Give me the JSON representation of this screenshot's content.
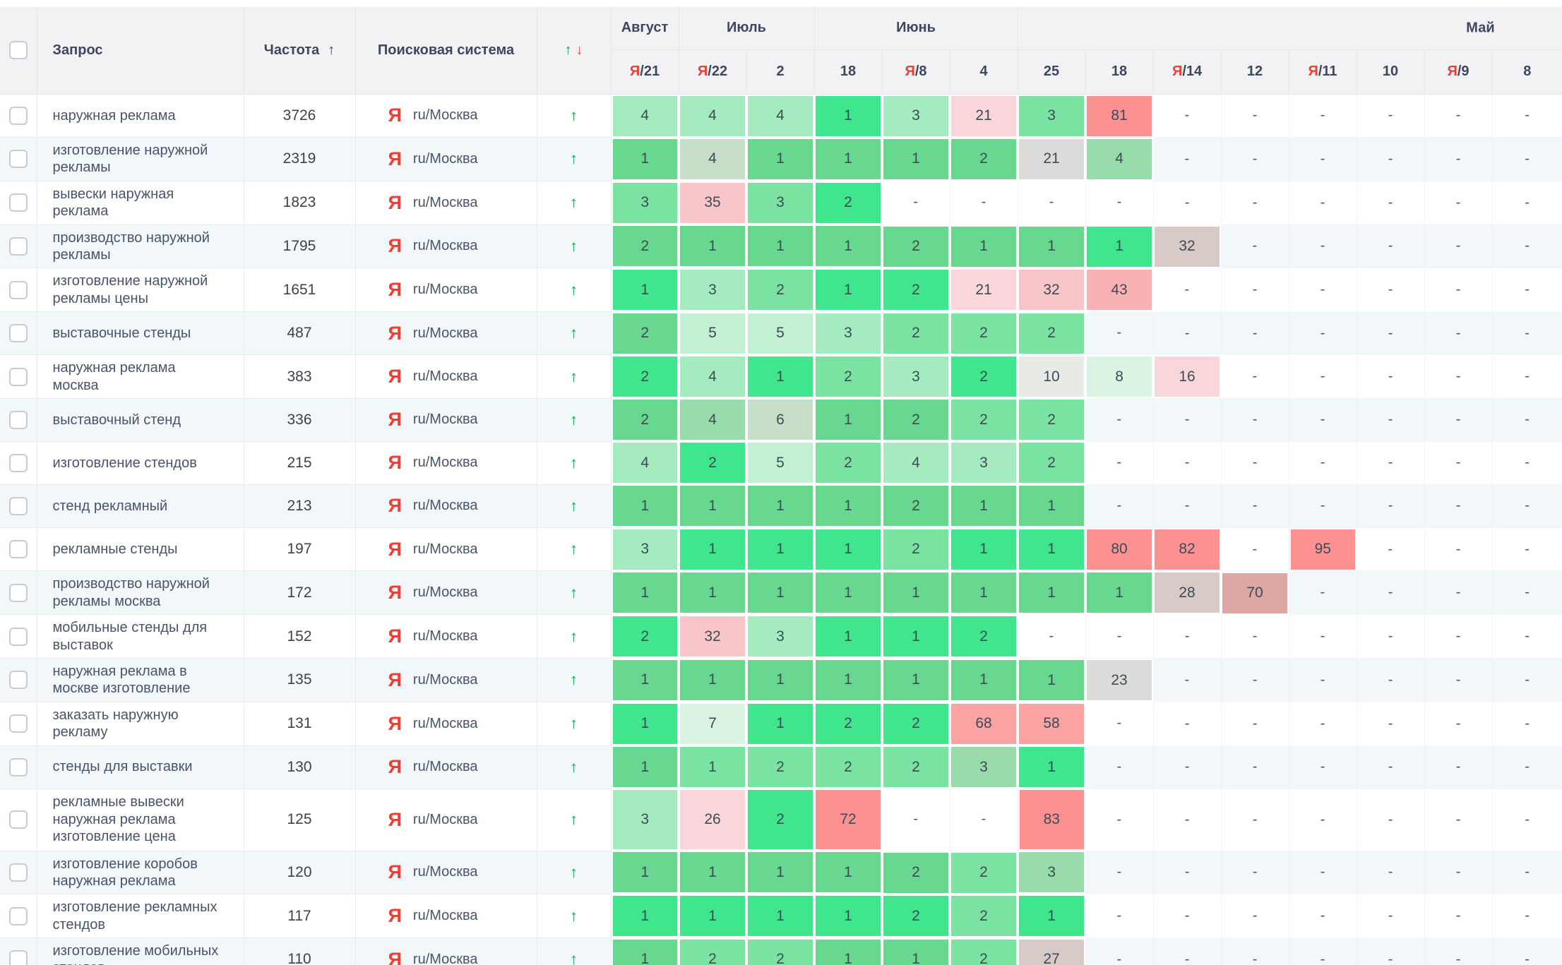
{
  "header": {
    "query": "Запрос",
    "frequency": "Частота",
    "frequency_sort_icon": "↑",
    "engine": "Поисковая система",
    "trend_up_icon": "↑",
    "trend_down_icon": "↓"
  },
  "months": [
    {
      "label": "Август",
      "span": 1
    },
    {
      "label": "Июль",
      "span": 2
    },
    {
      "label": "Июнь",
      "span": 3
    },
    {
      "label": "Май",
      "span": 8
    }
  ],
  "dates": [
    {
      "badge": "Я",
      "label": "/21"
    },
    {
      "badge": "Я",
      "label": "/22"
    },
    {
      "badge": "",
      "label": "2"
    },
    {
      "badge": "",
      "label": "18"
    },
    {
      "badge": "Я",
      "label": "/8"
    },
    {
      "badge": "",
      "label": "4"
    },
    {
      "badge": "",
      "label": "25"
    },
    {
      "badge": "",
      "label": "18"
    },
    {
      "badge": "Я",
      "label": "/14"
    },
    {
      "badge": "",
      "label": "12"
    },
    {
      "badge": "Я",
      "label": "/11"
    },
    {
      "badge": "",
      "label": "10"
    },
    {
      "badge": "Я",
      "label": "/9"
    },
    {
      "badge": "",
      "label": "8"
    }
  ],
  "palette": {
    "g1": "#40e68d",
    "g2": "#68d78f",
    "g3": "#7be3a1",
    "g4": "#a4ecc0",
    "g5": "#c3f1d3",
    "g6": "#c7dfc9",
    "g7": "#97dcaa",
    "g8": "#d9f4e0",
    "gy1": "#dbdcda",
    "gy2": "#e8eae6",
    "tp": "#d8cac6",
    "rs": "#dda7a3",
    "p1": "#f8d6d9",
    "p2": "#f8c5c8",
    "p3": "#f9b2b3",
    "p4": "#fba3a3",
    "r1": "#fb9191"
  },
  "colors": {
    "yandex_red": "#ee3f34",
    "trend_green": "#15a857",
    "trend_red": "#e84c4c",
    "header_bg": "#f2f2f4",
    "zebra_row": "#f2f7fa"
  },
  "engine_icon": "Я",
  "engine_region": "ru/Москва",
  "empty_mark": "-",
  "rows": [
    {
      "query": "наружная реклама",
      "frequency": "3726",
      "trend": "up",
      "positions": [
        {
          "v": "4",
          "c": "g4"
        },
        {
          "v": "4",
          "c": "g4"
        },
        {
          "v": "4",
          "c": "g4"
        },
        {
          "v": "1",
          "c": "g1"
        },
        {
          "v": "3",
          "c": "g4"
        },
        {
          "v": "21",
          "c": "p1"
        },
        {
          "v": "3",
          "c": "g3"
        },
        {
          "v": "81",
          "c": "r1"
        },
        {
          "v": "-"
        },
        {
          "v": "-"
        },
        {
          "v": "-"
        },
        {
          "v": "-"
        },
        {
          "v": "-"
        },
        {
          "v": "-"
        }
      ]
    },
    {
      "query": "изготовление наружной рекламы",
      "frequency": "2319",
      "trend": "up",
      "positions": [
        {
          "v": "1",
          "c": "g2"
        },
        {
          "v": "4",
          "c": "g6"
        },
        {
          "v": "1",
          "c": "g2"
        },
        {
          "v": "1",
          "c": "g2"
        },
        {
          "v": "1",
          "c": "g2"
        },
        {
          "v": "2",
          "c": "g2"
        },
        {
          "v": "21",
          "c": "gy1"
        },
        {
          "v": "4",
          "c": "g7"
        },
        {
          "v": "-"
        },
        {
          "v": "-"
        },
        {
          "v": "-"
        },
        {
          "v": "-"
        },
        {
          "v": "-"
        },
        {
          "v": "-"
        }
      ]
    },
    {
      "query": "вывески наружная реклама",
      "frequency": "1823",
      "trend": "up",
      "positions": [
        {
          "v": "3",
          "c": "g3"
        },
        {
          "v": "35",
          "c": "p2"
        },
        {
          "v": "3",
          "c": "g3"
        },
        {
          "v": "2",
          "c": "g1"
        },
        {
          "v": "-"
        },
        {
          "v": "-"
        },
        {
          "v": "-"
        },
        {
          "v": "-"
        },
        {
          "v": "-"
        },
        {
          "v": "-"
        },
        {
          "v": "-"
        },
        {
          "v": "-"
        },
        {
          "v": "-"
        },
        {
          "v": "-"
        }
      ]
    },
    {
      "query": "производство наружной рекламы",
      "frequency": "1795",
      "trend": "up",
      "positions": [
        {
          "v": "2",
          "c": "g2"
        },
        {
          "v": "1",
          "c": "g2"
        },
        {
          "v": "1",
          "c": "g2"
        },
        {
          "v": "1",
          "c": "g2"
        },
        {
          "v": "2",
          "c": "g2"
        },
        {
          "v": "1",
          "c": "g2"
        },
        {
          "v": "1",
          "c": "g2"
        },
        {
          "v": "1",
          "c": "g1"
        },
        {
          "v": "32",
          "c": "tp"
        },
        {
          "v": "-"
        },
        {
          "v": "-"
        },
        {
          "v": "-"
        },
        {
          "v": "-"
        },
        {
          "v": "-"
        }
      ]
    },
    {
      "query": "изготовление наружной рекламы цены",
      "frequency": "1651",
      "trend": "up",
      "positions": [
        {
          "v": "1",
          "c": "g1"
        },
        {
          "v": "3",
          "c": "g4"
        },
        {
          "v": "2",
          "c": "g3"
        },
        {
          "v": "1",
          "c": "g1"
        },
        {
          "v": "2",
          "c": "g1"
        },
        {
          "v": "21",
          "c": "p1"
        },
        {
          "v": "32",
          "c": "p2"
        },
        {
          "v": "43",
          "c": "p3"
        },
        {
          "v": "-"
        },
        {
          "v": "-"
        },
        {
          "v": "-"
        },
        {
          "v": "-"
        },
        {
          "v": "-"
        },
        {
          "v": "-"
        }
      ]
    },
    {
      "query": "выставочные стенды",
      "frequency": "487",
      "trend": "up",
      "positions": [
        {
          "v": "2",
          "c": "g2"
        },
        {
          "v": "5",
          "c": "g5"
        },
        {
          "v": "5",
          "c": "g5"
        },
        {
          "v": "3",
          "c": "g4"
        },
        {
          "v": "2",
          "c": "g3"
        },
        {
          "v": "2",
          "c": "g3"
        },
        {
          "v": "2",
          "c": "g3"
        },
        {
          "v": "-"
        },
        {
          "v": "-"
        },
        {
          "v": "-"
        },
        {
          "v": "-"
        },
        {
          "v": "-"
        },
        {
          "v": "-"
        },
        {
          "v": "-"
        }
      ]
    },
    {
      "query": "наружная реклама москва",
      "frequency": "383",
      "trend": "up",
      "positions": [
        {
          "v": "2",
          "c": "g1"
        },
        {
          "v": "4",
          "c": "g4"
        },
        {
          "v": "1",
          "c": "g1"
        },
        {
          "v": "2",
          "c": "g3"
        },
        {
          "v": "3",
          "c": "g4"
        },
        {
          "v": "2",
          "c": "g1"
        },
        {
          "v": "10",
          "c": "gy2"
        },
        {
          "v": "8",
          "c": "g8"
        },
        {
          "v": "16",
          "c": "p1"
        },
        {
          "v": "-"
        },
        {
          "v": "-"
        },
        {
          "v": "-"
        },
        {
          "v": "-"
        },
        {
          "v": "-"
        }
      ]
    },
    {
      "query": "выставочный стенд",
      "frequency": "336",
      "trend": "up",
      "positions": [
        {
          "v": "2",
          "c": "g2"
        },
        {
          "v": "4",
          "c": "g7"
        },
        {
          "v": "6",
          "c": "g6"
        },
        {
          "v": "1",
          "c": "g2"
        },
        {
          "v": "2",
          "c": "g2"
        },
        {
          "v": "2",
          "c": "g3"
        },
        {
          "v": "2",
          "c": "g3"
        },
        {
          "v": "-"
        },
        {
          "v": "-"
        },
        {
          "v": "-"
        },
        {
          "v": "-"
        },
        {
          "v": "-"
        },
        {
          "v": "-"
        },
        {
          "v": "-"
        }
      ]
    },
    {
      "query": "изготовление стендов",
      "frequency": "215",
      "trend": "up",
      "positions": [
        {
          "v": "4",
          "c": "g4"
        },
        {
          "v": "2",
          "c": "g1"
        },
        {
          "v": "5",
          "c": "g5"
        },
        {
          "v": "2",
          "c": "g3"
        },
        {
          "v": "4",
          "c": "g4"
        },
        {
          "v": "3",
          "c": "g4"
        },
        {
          "v": "2",
          "c": "g3"
        },
        {
          "v": "-"
        },
        {
          "v": "-"
        },
        {
          "v": "-"
        },
        {
          "v": "-"
        },
        {
          "v": "-"
        },
        {
          "v": "-"
        },
        {
          "v": "-"
        }
      ]
    },
    {
      "query": "стенд рекламный",
      "frequency": "213",
      "trend": "up",
      "positions": [
        {
          "v": "1",
          "c": "g2"
        },
        {
          "v": "1",
          "c": "g2"
        },
        {
          "v": "1",
          "c": "g2"
        },
        {
          "v": "1",
          "c": "g2"
        },
        {
          "v": "2",
          "c": "g2"
        },
        {
          "v": "1",
          "c": "g2"
        },
        {
          "v": "1",
          "c": "g2"
        },
        {
          "v": "-"
        },
        {
          "v": "-"
        },
        {
          "v": "-"
        },
        {
          "v": "-"
        },
        {
          "v": "-"
        },
        {
          "v": "-"
        },
        {
          "v": "-"
        }
      ]
    },
    {
      "query": "рекламные стенды",
      "frequency": "197",
      "trend": "up",
      "positions": [
        {
          "v": "3",
          "c": "g4"
        },
        {
          "v": "1",
          "c": "g1"
        },
        {
          "v": "1",
          "c": "g1"
        },
        {
          "v": "1",
          "c": "g1"
        },
        {
          "v": "2",
          "c": "g3"
        },
        {
          "v": "1",
          "c": "g1"
        },
        {
          "v": "1",
          "c": "g1"
        },
        {
          "v": "80",
          "c": "r1"
        },
        {
          "v": "82",
          "c": "r1"
        },
        {
          "v": "-"
        },
        {
          "v": "95",
          "c": "r1"
        },
        {
          "v": "-"
        },
        {
          "v": "-"
        },
        {
          "v": "-"
        }
      ]
    },
    {
      "query": "производство наружной рекламы москва",
      "frequency": "172",
      "trend": "up",
      "positions": [
        {
          "v": "1",
          "c": "g2"
        },
        {
          "v": "1",
          "c": "g2"
        },
        {
          "v": "1",
          "c": "g2"
        },
        {
          "v": "1",
          "c": "g2"
        },
        {
          "v": "1",
          "c": "g2"
        },
        {
          "v": "1",
          "c": "g2"
        },
        {
          "v": "1",
          "c": "g2"
        },
        {
          "v": "1",
          "c": "g2"
        },
        {
          "v": "28",
          "c": "tp"
        },
        {
          "v": "70",
          "c": "rs"
        },
        {
          "v": "-"
        },
        {
          "v": "-"
        },
        {
          "v": "-"
        },
        {
          "v": "-"
        }
      ]
    },
    {
      "query": "мобильные стенды для выставок",
      "frequency": "152",
      "trend": "up",
      "positions": [
        {
          "v": "2",
          "c": "g1"
        },
        {
          "v": "32",
          "c": "p2"
        },
        {
          "v": "3",
          "c": "g4"
        },
        {
          "v": "1",
          "c": "g1"
        },
        {
          "v": "1",
          "c": "g1"
        },
        {
          "v": "2",
          "c": "g1"
        },
        {
          "v": "-"
        },
        {
          "v": "-"
        },
        {
          "v": "-"
        },
        {
          "v": "-"
        },
        {
          "v": "-"
        },
        {
          "v": "-"
        },
        {
          "v": "-"
        },
        {
          "v": "-"
        }
      ]
    },
    {
      "query": "наружная реклама в москве изготовление",
      "frequency": "135",
      "trend": "up",
      "positions": [
        {
          "v": "1",
          "c": "g2"
        },
        {
          "v": "1",
          "c": "g2"
        },
        {
          "v": "1",
          "c": "g2"
        },
        {
          "v": "1",
          "c": "g2"
        },
        {
          "v": "1",
          "c": "g2"
        },
        {
          "v": "1",
          "c": "g2"
        },
        {
          "v": "1",
          "c": "g2"
        },
        {
          "v": "23",
          "c": "gy1"
        },
        {
          "v": "-"
        },
        {
          "v": "-"
        },
        {
          "v": "-"
        },
        {
          "v": "-"
        },
        {
          "v": "-"
        },
        {
          "v": "-"
        }
      ]
    },
    {
      "query": "заказать наружную рекламу",
      "frequency": "131",
      "trend": "up",
      "positions": [
        {
          "v": "1",
          "c": "g1"
        },
        {
          "v": "7",
          "c": "g8"
        },
        {
          "v": "1",
          "c": "g1"
        },
        {
          "v": "2",
          "c": "g1"
        },
        {
          "v": "2",
          "c": "g1"
        },
        {
          "v": "68",
          "c": "p4"
        },
        {
          "v": "58",
          "c": "p4"
        },
        {
          "v": "-"
        },
        {
          "v": "-"
        },
        {
          "v": "-"
        },
        {
          "v": "-"
        },
        {
          "v": "-"
        },
        {
          "v": "-"
        },
        {
          "v": "-"
        }
      ]
    },
    {
      "query": "стенды для выставки",
      "frequency": "130",
      "trend": "up",
      "positions": [
        {
          "v": "1",
          "c": "g2"
        },
        {
          "v": "1",
          "c": "g3"
        },
        {
          "v": "2",
          "c": "g3"
        },
        {
          "v": "2",
          "c": "g3"
        },
        {
          "v": "2",
          "c": "g3"
        },
        {
          "v": "3",
          "c": "g7"
        },
        {
          "v": "1",
          "c": "g1"
        },
        {
          "v": "-"
        },
        {
          "v": "-"
        },
        {
          "v": "-"
        },
        {
          "v": "-"
        },
        {
          "v": "-"
        },
        {
          "v": "-"
        },
        {
          "v": "-"
        }
      ]
    },
    {
      "query": "рекламные вывески наружная реклама изготовление цена",
      "frequency": "125",
      "trend": "up",
      "positions": [
        {
          "v": "3",
          "c": "g4"
        },
        {
          "v": "26",
          "c": "p1"
        },
        {
          "v": "2",
          "c": "g1"
        },
        {
          "v": "72",
          "c": "r1"
        },
        {
          "v": "-"
        },
        {
          "v": "-"
        },
        {
          "v": "83",
          "c": "r1"
        },
        {
          "v": "-"
        },
        {
          "v": "-"
        },
        {
          "v": "-"
        },
        {
          "v": "-"
        },
        {
          "v": "-"
        },
        {
          "v": "-"
        },
        {
          "v": "-"
        }
      ]
    },
    {
      "query": "изготовление коробов наружная реклама",
      "frequency": "120",
      "trend": "up",
      "positions": [
        {
          "v": "1",
          "c": "g2"
        },
        {
          "v": "1",
          "c": "g2"
        },
        {
          "v": "1",
          "c": "g2"
        },
        {
          "v": "1",
          "c": "g2"
        },
        {
          "v": "2",
          "c": "g2"
        },
        {
          "v": "2",
          "c": "g3"
        },
        {
          "v": "3",
          "c": "g7"
        },
        {
          "v": "-"
        },
        {
          "v": "-"
        },
        {
          "v": "-"
        },
        {
          "v": "-"
        },
        {
          "v": "-"
        },
        {
          "v": "-"
        },
        {
          "v": "-"
        }
      ]
    },
    {
      "query": "изготовление рекламных стендов",
      "frequency": "117",
      "trend": "up",
      "positions": [
        {
          "v": "1",
          "c": "g1"
        },
        {
          "v": "1",
          "c": "g1"
        },
        {
          "v": "1",
          "c": "g1"
        },
        {
          "v": "1",
          "c": "g1"
        },
        {
          "v": "2",
          "c": "g1"
        },
        {
          "v": "2",
          "c": "g3"
        },
        {
          "v": "1",
          "c": "g1"
        },
        {
          "v": "-"
        },
        {
          "v": "-"
        },
        {
          "v": "-"
        },
        {
          "v": "-"
        },
        {
          "v": "-"
        },
        {
          "v": "-"
        },
        {
          "v": "-"
        }
      ]
    },
    {
      "query": "изготовление мобильных стендов",
      "frequency": "110",
      "trend": "up",
      "positions": [
        {
          "v": "1",
          "c": "g2"
        },
        {
          "v": "2",
          "c": "g3"
        },
        {
          "v": "2",
          "c": "g3"
        },
        {
          "v": "1",
          "c": "g2"
        },
        {
          "v": "1",
          "c": "g2"
        },
        {
          "v": "2",
          "c": "g3"
        },
        {
          "v": "27",
          "c": "tp"
        },
        {
          "v": "-"
        },
        {
          "v": "-"
        },
        {
          "v": "-"
        },
        {
          "v": "-"
        },
        {
          "v": "-"
        },
        {
          "v": "-"
        },
        {
          "v": "-"
        }
      ]
    }
  ]
}
